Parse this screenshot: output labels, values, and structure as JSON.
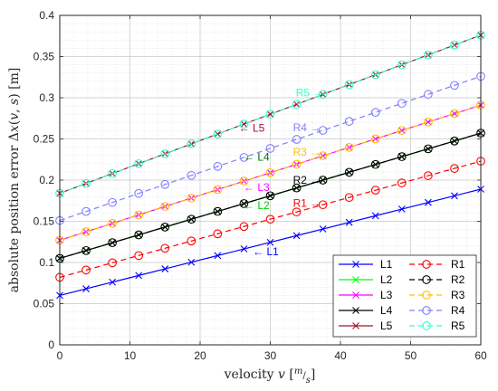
{
  "chart_data": {
    "type": "line",
    "xlabel": "velocity v [m/s]",
    "ylabel": "absolute position error Δx(v, s) [m]",
    "xlim": [
      0,
      60
    ],
    "ylim": [
      0,
      0.4
    ],
    "xticks": [
      0,
      10,
      20,
      30,
      40,
      50,
      60
    ],
    "yticks": [
      0,
      0.05,
      0.1,
      0.15,
      0.2,
      0.25,
      0.3,
      0.35,
      0.4
    ],
    "xtick_labels": [
      "0",
      "10",
      "20",
      "30",
      "40",
      "50",
      "60"
    ],
    "ytick_labels": [
      "0",
      "0.05",
      "0.1",
      "0.15",
      "0.2",
      "0.25",
      "0.3",
      "0.35",
      "0.4"
    ],
    "grid": true,
    "minor_grid": true,
    "legend_position": "bottom-right",
    "x": [
      0,
      3.75,
      7.5,
      11.25,
      15,
      18.75,
      22.5,
      26.25,
      30,
      33.75,
      37.5,
      41.25,
      45,
      48.75,
      52.5,
      56.25,
      60
    ],
    "series": [
      {
        "name": "L1",
        "marker": "x",
        "style": "solid",
        "color": "#0000ff",
        "start": 0.06,
        "end": 0.189
      },
      {
        "name": "L2",
        "marker": "x",
        "style": "solid",
        "color": "#00ff00",
        "start": 0.105,
        "end": 0.257
      },
      {
        "name": "L3",
        "marker": "x",
        "style": "solid",
        "color": "#ff00ff",
        "start": 0.127,
        "end": 0.291
      },
      {
        "name": "L4",
        "marker": "x",
        "style": "solid",
        "color": "#000000",
        "start": 0.105,
        "end": 0.257
      },
      {
        "name": "L5",
        "marker": "x",
        "style": "solid",
        "color": "#a2142f",
        "start": 0.184,
        "end": 0.376
      },
      {
        "name": "R1",
        "marker": "o",
        "style": "dashed",
        "color": "#ff0000",
        "start": 0.082,
        "end": 0.223
      },
      {
        "name": "R2",
        "marker": "o",
        "style": "dashed",
        "color": "#000000",
        "start": 0.105,
        "end": 0.257
      },
      {
        "name": "R3",
        "marker": "o",
        "style": "dashed",
        "color": "#ffc000",
        "start": 0.127,
        "end": 0.291
      },
      {
        "name": "R4",
        "marker": "o",
        "style": "dashed",
        "color": "#7f7fff",
        "start": 0.151,
        "end": 0.326
      },
      {
        "name": "R5",
        "marker": "o",
        "style": "dashed",
        "color": "#33ffcc",
        "start": 0.184,
        "end": 0.376
      }
    ],
    "annotations": [
      {
        "text": "L1",
        "arrow": "←",
        "x": 27.5,
        "y": 0.113,
        "color": "#0000ff",
        "align": "start"
      },
      {
        "text": "L2",
        "arrow": "←",
        "x": 26.2,
        "y": 0.169,
        "color": "#00cc00",
        "align": "start"
      },
      {
        "text": "L3",
        "arrow": "←",
        "x": 26.2,
        "y": 0.191,
        "color": "#ff00ff",
        "align": "start"
      },
      {
        "text": "L4",
        "arrow": "←",
        "x": 26.2,
        "y": 0.228,
        "color": "#007000",
        "align": "start"
      },
      {
        "text": "L5",
        "arrow": "←",
        "x": 25.5,
        "y": 0.263,
        "color": "#a2142f",
        "align": "start"
      },
      {
        "text": "R1",
        "arrow": "→",
        "x": 37.2,
        "y": 0.172,
        "color": "#ff0000",
        "align": "end"
      },
      {
        "text": "R2",
        "arrow": "→",
        "x": 37.2,
        "y": 0.2,
        "color": "#000000",
        "align": "end"
      },
      {
        "text": "R3",
        "arrow": "→",
        "x": 37.2,
        "y": 0.234,
        "color": "#ffc000",
        "align": "end"
      },
      {
        "text": "R4",
        "arrow": "→",
        "x": 37.2,
        "y": 0.264,
        "color": "#7f7fff",
        "align": "end"
      },
      {
        "text": "R5",
        "arrow": "→",
        "x": 37.6,
        "y": 0.306,
        "color": "#33ffcc",
        "align": "end"
      }
    ]
  }
}
